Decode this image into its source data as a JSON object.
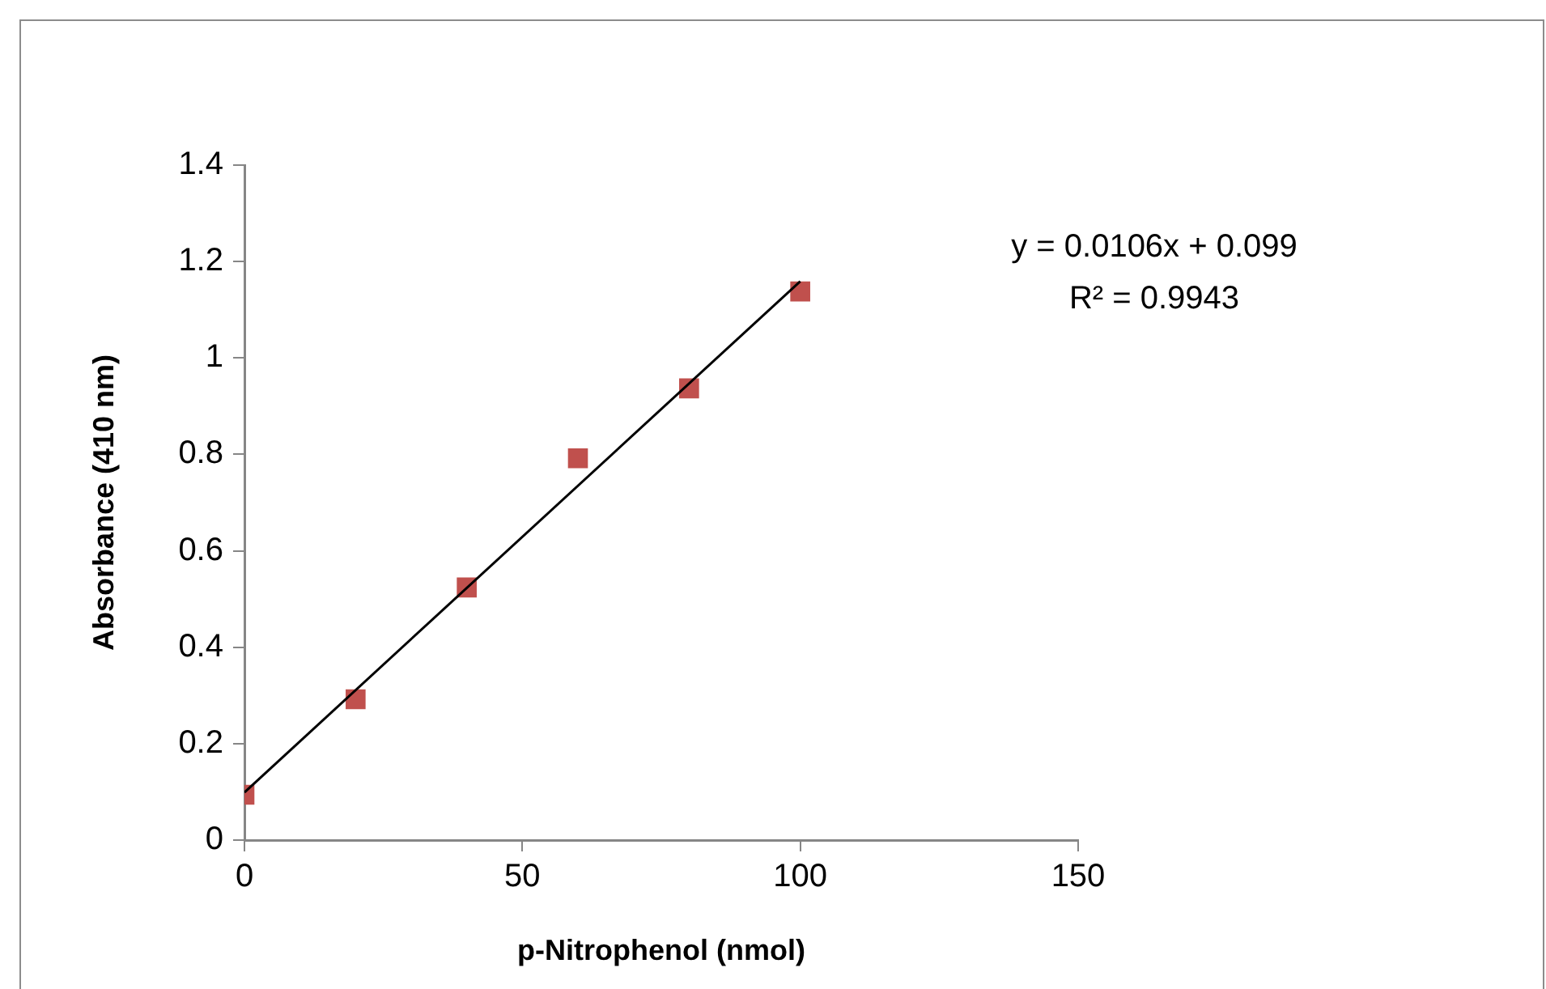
{
  "chart_data": {
    "type": "scatter",
    "xlabel": "p-Nitrophenol (nmol)",
    "ylabel": "Absorbance (410 nm)",
    "x": [
      0,
      20,
      40,
      60,
      80,
      100
    ],
    "series": [
      {
        "color": "#c0504d",
        "values": [
          0.094,
          0.292,
          0.524,
          0.792,
          0.937,
          1.138
        ],
        "marker": "square"
      },
      {
        "type": "line",
        "color": "#000000",
        "x": [
          0,
          100
        ],
        "values": [
          0.099,
          1.159
        ],
        "marker": "none"
      }
    ],
    "xlim": [
      0,
      150
    ],
    "xticks": [
      0,
      50,
      100,
      150
    ],
    "ylim": [
      0,
      1.4
    ],
    "yticks": [
      0,
      0.2,
      0.4,
      0.6,
      0.8,
      1,
      1.2,
      1.4
    ],
    "grid": false,
    "legend": false,
    "annotations": [
      "y = 0.0106x + 0.099",
      "R² = 0.9943"
    ]
  }
}
